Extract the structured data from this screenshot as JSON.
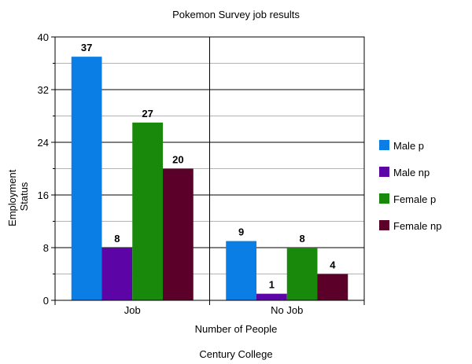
{
  "chart_data": {
    "type": "bar",
    "title": "Pokemon Survey job results",
    "xlabel": "Number of People",
    "ylabel": [
      "Employment",
      "Status"
    ],
    "footer": "Century College",
    "categories": [
      "Job",
      "No Job"
    ],
    "series": [
      {
        "name": "Male p",
        "values": [
          37,
          9
        ],
        "color": "#0a7ee4"
      },
      {
        "name": "Male np",
        "values": [
          8,
          1
        ],
        "color": "#5c04a6"
      },
      {
        "name": "Female p",
        "values": [
          27,
          8
        ],
        "color": "#18890a"
      },
      {
        "name": "Female np",
        "values": [
          20,
          4
        ],
        "color": "#5a0029"
      }
    ],
    "ylim": [
      0,
      40
    ],
    "yticks": [
      0,
      8,
      16,
      24,
      32,
      40
    ],
    "grid": true,
    "legend": "right"
  }
}
